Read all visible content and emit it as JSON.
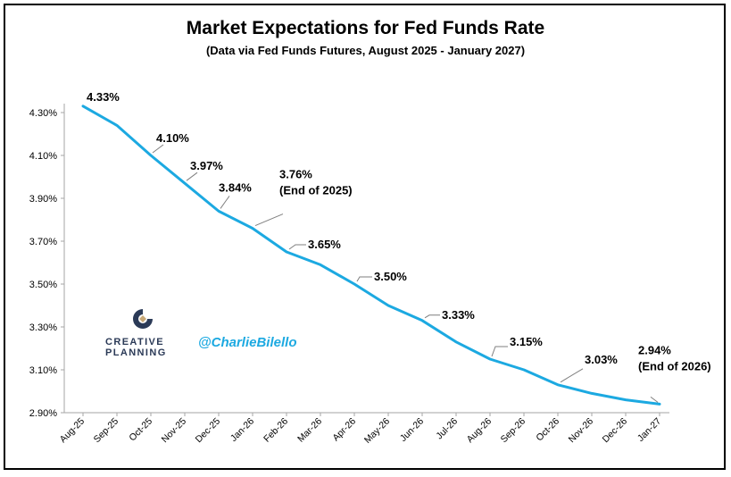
{
  "chart_data": {
    "type": "line",
    "title": "Market Expectations for Fed Funds Rate",
    "subtitle": "(Data via Fed Funds Futures, August 2025 - January 2027)",
    "categories": [
      "Aug-25",
      "Sep-25",
      "Oct-25",
      "Nov-25",
      "Dec-25",
      "Jan-26",
      "Feb-26",
      "Mar-26",
      "Apr-26",
      "May-26",
      "Jun-26",
      "Jul-26",
      "Aug-26",
      "Sep-26",
      "Oct-26",
      "Nov-26",
      "Dec-26",
      "Jan-27"
    ],
    "series": [
      {
        "values": [
          4.33,
          4.24,
          4.1,
          3.97,
          3.84,
          3.76,
          3.65,
          3.59,
          3.5,
          3.4,
          3.33,
          3.23,
          3.15,
          3.1,
          3.03,
          2.99,
          2.96,
          2.94
        ],
        "color": "#1ca9e1"
      }
    ],
    "ylim": [
      2.9,
      4.3
    ],
    "yticks": [
      "2.90%",
      "3.10%",
      "3.30%",
      "3.50%",
      "3.70%",
      "3.90%",
      "4.10%",
      "4.30%"
    ],
    "grid": false,
    "data_labels": [
      {
        "index": 0,
        "lines": [
          "4.33%"
        ]
      },
      {
        "index": 2,
        "lines": [
          "4.10%"
        ]
      },
      {
        "index": 3,
        "lines": [
          "3.97%"
        ]
      },
      {
        "index": 4,
        "lines": [
          "3.84%"
        ]
      },
      {
        "index": 5,
        "lines": [
          "3.76%",
          "(End of 2025)"
        ]
      },
      {
        "index": 6,
        "lines": [
          "3.65%"
        ]
      },
      {
        "index": 8,
        "lines": [
          "3.50%"
        ]
      },
      {
        "index": 10,
        "lines": [
          "3.33%"
        ]
      },
      {
        "index": 12,
        "lines": [
          "3.15%"
        ]
      },
      {
        "index": 14,
        "lines": [
          "3.03%"
        ]
      },
      {
        "index": 17,
        "lines": [
          "2.94%",
          "(End of 2026)"
        ]
      }
    ]
  },
  "branding": {
    "logo_line1": "CREATIVE",
    "logo_line2": "PLANNING",
    "handle": "@CharlieBilello"
  },
  "colors": {
    "line": "#1ca9e1",
    "logo_text": "#2b3a57",
    "logo_accent": "#c8a978"
  }
}
